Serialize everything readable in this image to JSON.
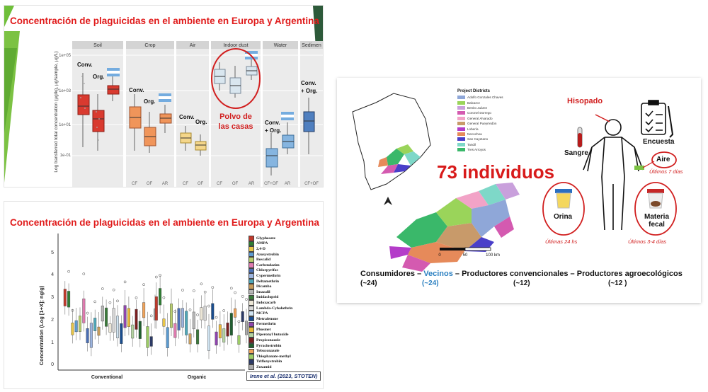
{
  "slide1": {
    "title": "Concentración de plaguicidas en el ambiente en Europa y Argentina",
    "ylabel": "Log transferred total concentration (µg/kg, µg/sample, µg/L)",
    "panels": [
      "Soil",
      "Crop",
      "Air",
      "Indoor dust",
      "Water",
      "Sedimen"
    ],
    "yticks": [
      "1e+05",
      "1e+03",
      "1e+01",
      "1e-01"
    ],
    "labels": {
      "conv": "Conv.",
      "org": "Org.",
      "conv_org": "Conv.\n+ Org."
    },
    "callout": "Polvo de\nlas casas",
    "xticks": {
      "soil": [
        "CF",
        "OF",
        "AR"
      ],
      "crop": [
        "CF",
        "OF",
        "AR"
      ],
      "air": [
        "CF",
        "OF"
      ],
      "dust": [
        "CF",
        "OF",
        "AR"
      ],
      "water": [
        "CF+OF",
        "AR"
      ],
      "sediment": [
        "CF+OF"
      ]
    }
  },
  "slide2": {
    "title": "Concentración de plaguicidas en el ambiente en Europa y Argentina",
    "ylabel": "Concentration (Log [1+X]; ng/g)",
    "yticks": [
      "0",
      "1",
      "2",
      "3",
      "4",
      "5"
    ],
    "xlabels": [
      "Conventional",
      "Organic"
    ],
    "citation": "Irene et al. (2023, STOTEN)",
    "legend": [
      {
        "name": "Glyphosate",
        "color": "#c0392b"
      },
      {
        "name": "AMPA",
        "color": "#2e7d32"
      },
      {
        "name": "2,4-D",
        "color": "#e8c547"
      },
      {
        "name": "Azoxystrobin",
        "color": "#5c9bd1"
      },
      {
        "name": "Boscalid",
        "color": "#b9cf6e"
      },
      {
        "name": "Carbendazim",
        "color": "#e07bb0"
      },
      {
        "name": "Chlorpyrifos",
        "color": "#4a6fb5"
      },
      {
        "name": "Cypermethrin",
        "color": "#9bb3de"
      },
      {
        "name": "Deltamethrin",
        "color": "#4fa7b8"
      },
      {
        "name": "Dicamba",
        "color": "#c69b5a"
      },
      {
        "name": "Imazalil",
        "color": "#b7b7b7"
      },
      {
        "name": "Imidacloprid",
        "color": "#3a7a3a"
      },
      {
        "name": "Indoxacarb",
        "color": "#ece6d6"
      },
      {
        "name": "Lambda-Cyhalothrin",
        "color": "#d8d8d8"
      },
      {
        "name": "MCPA",
        "color": "#cfe3f1"
      },
      {
        "name": "Metrafenone",
        "color": "#1a4d8f"
      },
      {
        "name": "Permethrin",
        "color": "#8e44ad"
      },
      {
        "name": "Phosmet",
        "color": "#e8b839"
      },
      {
        "name": "Piperonyl butoxide",
        "color": "#b3d3a0"
      },
      {
        "name": "Propiconazole",
        "color": "#7a1f1f"
      },
      {
        "name": "Pyraclostrobin",
        "color": "#1f5f2f"
      },
      {
        "name": "Tebuconazole",
        "color": "#f0a35a"
      },
      {
        "name": "Thiophanate-methyl",
        "color": "#9ccc65"
      },
      {
        "name": "Trifloxystrobin",
        "color": "#2b3a67"
      },
      {
        "name": "Zoxamid",
        "color": "#ababab"
      }
    ]
  },
  "slide3": {
    "legend_title": "Project Districts",
    "districts": [
      {
        "name": "Adolfo Gonzales Chaves",
        "color": "#8fa7d8"
      },
      {
        "name": "Balcarce",
        "color": "#9ad45a"
      },
      {
        "name": "Benito Juárez",
        "color": "#c9a0dc"
      },
      {
        "name": "Coronel Dorrego",
        "color": "#d45ab0"
      },
      {
        "name": "General Alvarado",
        "color": "#f2a3c7"
      },
      {
        "name": "General Pueyrredón",
        "color": "#c89a6a"
      },
      {
        "name": "Lobería",
        "color": "#b43cc9"
      },
      {
        "name": "Necochea",
        "color": "#e68a5a"
      },
      {
        "name": "San Cayetano",
        "color": "#4a3fc9"
      },
      {
        "name": "Tandil",
        "color": "#7ed8c8"
      },
      {
        "name": "Tres Arroyos",
        "color": "#3ab86a"
      }
    ],
    "scale_labels": [
      "0",
      "50",
      "100 km"
    ],
    "headline": "73 individuos",
    "hisopado": "Hisopado",
    "sangre": "Sangre",
    "encuesta": "Encuesta",
    "aire": "Aire",
    "aire_note": "Últimos 7 días",
    "orina": "Orina",
    "orina_note": "Últimas 24 hs",
    "materia": "Materia\nfecal",
    "materia_note": "Últimos 3-4 días",
    "groups": [
      {
        "name": "Consumidores",
        "count": "(~24)"
      },
      {
        "name": "Vecinos",
        "count": "(~24)"
      },
      {
        "name": "Productores convencionales",
        "count": "(~12)"
      },
      {
        "name": "Productores agroecológicos",
        "count": "(~12 )"
      }
    ],
    "separator": "–"
  }
}
